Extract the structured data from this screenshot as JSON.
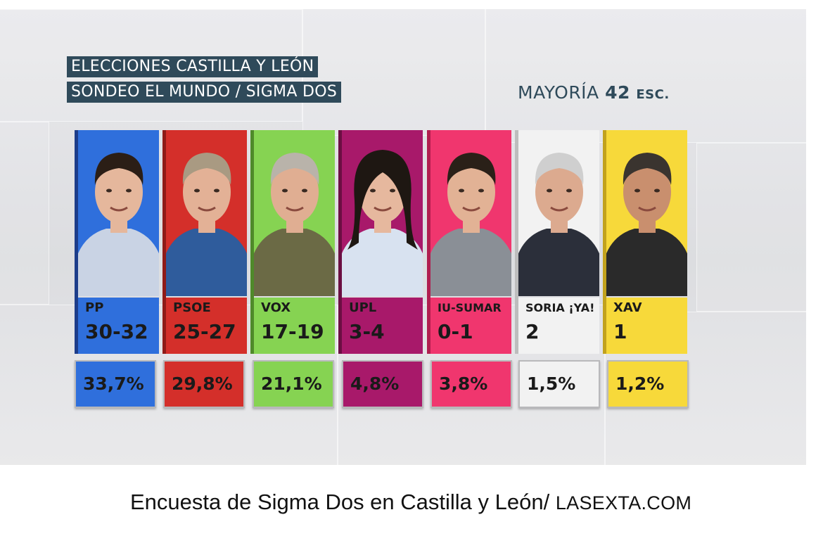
{
  "header": {
    "line1": "ELECCIONES CASTILLA Y LEÓN",
    "line2": "SONDEO EL MUNDO / SIGMA DOS",
    "majority_label": "MAYORÍA",
    "majority_value": "42",
    "majority_unit": "ESC."
  },
  "chart_data": {
    "type": "table",
    "title": "ELECCIONES CASTILLA Y LEÓN",
    "subtitle": "SONDEO EL MUNDO / SIGMA DOS",
    "categories": [
      "PP",
      "PSOE",
      "VOX",
      "UPL",
      "IU-SUMAR",
      "SORIA ¡YA!",
      "XAV"
    ],
    "series": [
      {
        "name": "seats",
        "values": [
          "30-32",
          "25-27",
          "17-19",
          "3-4",
          "0-1",
          "2",
          "1"
        ]
      },
      {
        "name": "vote_share",
        "values": [
          "33,7%",
          "29,8%",
          "21,1%",
          "4,8%",
          "3,8%",
          "1,5%",
          "1,2%"
        ]
      }
    ],
    "colors": [
      "#2f6fdc",
      "#d42f2a",
      "#86d352",
      "#a8196a",
      "#f0366e",
      "#f2f2f2",
      "#f7d93a"
    ],
    "majority": 42
  },
  "caption": {
    "text": "Encuesta de Sigma Dos en Castilla y León/",
    "site": "LASEXTA.COM"
  }
}
